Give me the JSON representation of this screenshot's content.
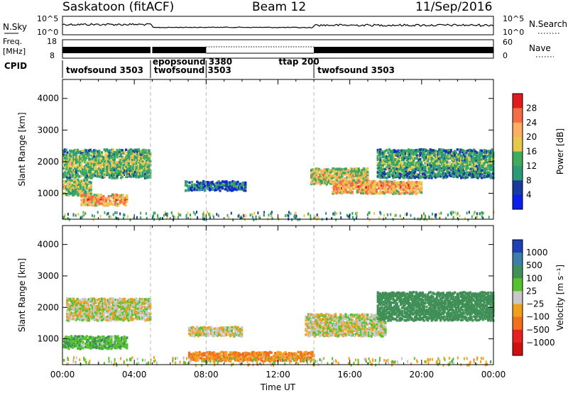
{
  "header": {
    "station": "Saskatoon (fitACF)",
    "beam": "Beam 12",
    "date": "11/Sep/2016"
  },
  "noise_panel": {
    "left_label": "N.Sky",
    "right_label": "N.Search",
    "left_ticks": [
      "10^5",
      "10^0"
    ],
    "right_ticks": [
      "10^5",
      "10^0"
    ]
  },
  "freq_panel": {
    "left_label_1": "Freq.",
    "left_label_2": "[MHz]",
    "right_label": "Nave",
    "left_ticks": [
      "18",
      "8"
    ],
    "right_ticks": [
      "60",
      "0"
    ]
  },
  "cpid": {
    "label": "CPID",
    "segments": [
      {
        "label": "twofsound 3503",
        "start_hour": 0.0
      },
      {
        "label": "epopsound 3380",
        "start_hour": 4.9
      },
      {
        "label": "twofsound 3503",
        "start_hour": 4.9
      },
      {
        "label": "ttap 200",
        "start_hour": 8.0
      },
      {
        "label": "twofsound 3503",
        "start_hour": 14.0
      }
    ],
    "divider_hours": [
      4.9,
      8.0,
      14.0
    ]
  },
  "chart_data": [
    {
      "type": "heatmap",
      "title": "Power",
      "ylabel": "Slant Range [km]",
      "xlabel": "",
      "x_unit": "hours UT",
      "xlim": [
        0,
        24
      ],
      "ylim": [
        180,
        4600
      ],
      "yticks": [
        1000,
        2000,
        3000,
        4000
      ],
      "colorbar": {
        "label": "Power [dB]",
        "ticks": [
          "28",
          "24",
          "20",
          "16",
          "12",
          "8",
          "4"
        ],
        "colors": [
          "#e31a1c",
          "#f46d43",
          "#fdae61",
          "#e6c94a",
          "#41ab5d",
          "#2b9a76",
          "#1a3a9e",
          "#0b1eea"
        ]
      },
      "echo_regions": [
        {
          "t0": 0.0,
          "t1": 4.9,
          "r_center": 2000,
          "r_width": 900,
          "power_db": 14
        },
        {
          "t0": 0.0,
          "t1": 1.6,
          "r_center": 1250,
          "r_width": 500,
          "power_db": 16
        },
        {
          "t0": 1.0,
          "t1": 3.6,
          "r_center": 850,
          "r_width": 350,
          "power_db": 22
        },
        {
          "t0": 6.8,
          "t1": 10.2,
          "r_center": 1300,
          "r_width": 300,
          "power_db": 8
        },
        {
          "t0": 13.8,
          "t1": 17.0,
          "r_center": 1600,
          "r_width": 500,
          "power_db": 18
        },
        {
          "t0": 15.0,
          "t1": 20.0,
          "r_center": 1250,
          "r_width": 400,
          "power_db": 22
        },
        {
          "t0": 17.5,
          "t1": 24.0,
          "r_center": 2000,
          "r_width": 900,
          "power_db": 12
        }
      ]
    },
    {
      "type": "heatmap",
      "title": "Velocity",
      "ylabel": "Slant Range [km]",
      "xlabel": "Time UT",
      "x_unit": "hours UT",
      "xlim": [
        0,
        24
      ],
      "ylim": [
        180,
        4600
      ],
      "yticks": [
        1000,
        2000,
        3000,
        4000
      ],
      "xticks": [
        "00:00",
        "04:00",
        "08:00",
        "12:00",
        "16:00",
        "20:00",
        "00:00"
      ],
      "colorbar": {
        "label": "Velocity [m s⁻¹]",
        "ticks": [
          "1000",
          "500",
          "100",
          "25",
          "−25",
          "−100",
          "−500",
          "−1000"
        ],
        "colors": [
          "#1f3fb5",
          "#3b7ea8",
          "#3f8f56",
          "#55c330",
          "#c8c8c8",
          "#f0a020",
          "#f07020",
          "#e82020",
          "#d01010"
        ]
      },
      "echo_regions": [
        {
          "t0": 0.2,
          "t1": 4.9,
          "r_center": 2000,
          "r_width": 700,
          "velocity": 0
        },
        {
          "t0": 0.0,
          "t1": 3.6,
          "r_center": 950,
          "r_width": 400,
          "velocity": 80
        },
        {
          "t0": 7.0,
          "t1": 10.0,
          "r_center": 1300,
          "r_width": 300,
          "velocity": 0
        },
        {
          "t0": 7.0,
          "t1": 14.0,
          "r_center": 500,
          "r_width": 300,
          "velocity": -100
        },
        {
          "t0": 13.5,
          "t1": 18.0,
          "r_center": 1500,
          "r_width": 700,
          "velocity": 0
        },
        {
          "t0": 17.5,
          "t1": 24.0,
          "r_center": 2100,
          "r_width": 900,
          "velocity": 200
        }
      ]
    }
  ]
}
